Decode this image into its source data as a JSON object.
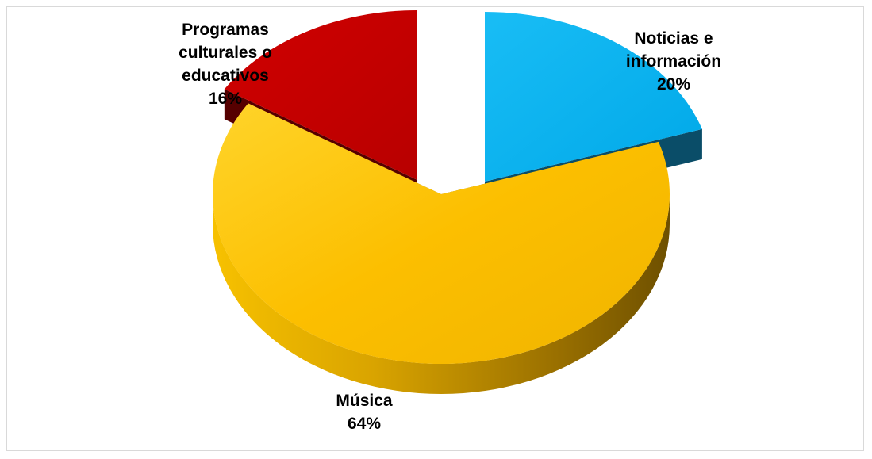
{
  "chart_data": {
    "type": "pie",
    "style": "3d-exploded",
    "title": "",
    "slices": [
      {
        "key": "noticias",
        "label_lines": [
          "Noticias e",
          "información"
        ],
        "label": "Noticias e información",
        "value": 20,
        "value_label": "20%",
        "color": "#00b0f0",
        "side_color": "#0a4d68"
      },
      {
        "key": "musica",
        "label_lines": [
          "Música"
        ],
        "label": "Música",
        "value": 64,
        "value_label": "64%",
        "color": "#fcbf00",
        "side_color": "#8a6400"
      },
      {
        "key": "programas",
        "label_lines": [
          "Programas",
          "culturales o",
          "educativos"
        ],
        "label": "Programas culturales o educativos",
        "value": 16,
        "value_label": "16%",
        "color": "#c00000",
        "side_color": "#560000"
      }
    ]
  }
}
